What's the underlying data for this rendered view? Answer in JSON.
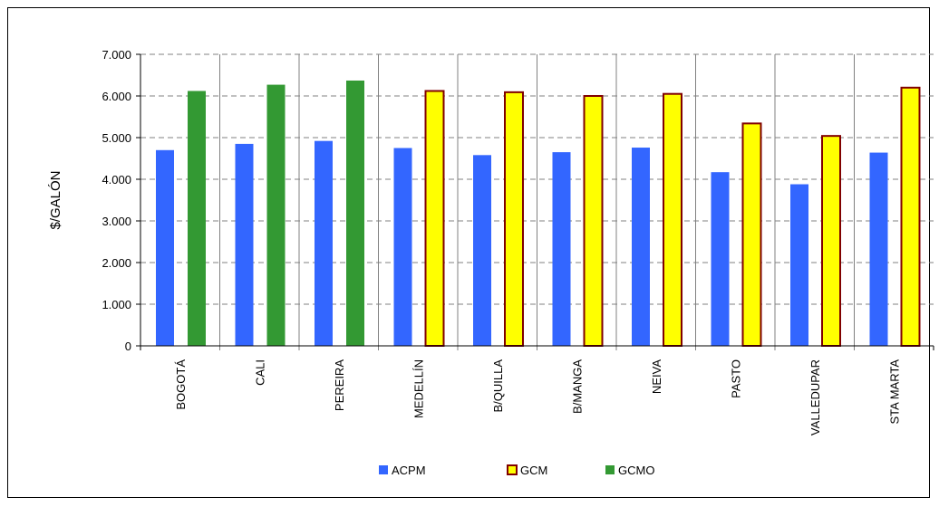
{
  "chart_data": {
    "type": "bar",
    "title": "",
    "xlabel": "",
    "ylabel": "$/GALÓN",
    "ylim": [
      0,
      7000
    ],
    "yticks": [
      0,
      1000,
      2000,
      3000,
      4000,
      5000,
      6000,
      7000
    ],
    "ytick_labels": [
      "0",
      "1.000",
      "2.000",
      "3.000",
      "4.000",
      "5.000",
      "6.000",
      "7.000"
    ],
    "grid": true,
    "legend_position": "bottom",
    "categories": [
      "BOGOTÁ",
      "CALI",
      "PEREIRA",
      "MEDELLÍN",
      "B/QUILLA",
      "B/MANGA",
      "NEIVA",
      "PASTO",
      "VALLEDUPAR",
      "STA MARTA"
    ],
    "series": [
      {
        "name": "ACPM",
        "color": "#3366FF",
        "stroke": "none",
        "values": [
          4700,
          4850,
          4920,
          4750,
          4580,
          4650,
          4760,
          4170,
          3880,
          4640
        ]
      },
      {
        "name": "GCM",
        "color": "#FFFF00",
        "stroke": "#800000",
        "values": [
          null,
          null,
          null,
          6120,
          6090,
          6000,
          6050,
          5340,
          5040,
          6200
        ]
      },
      {
        "name": "GCMO",
        "color": "#339933",
        "stroke": "none",
        "values": [
          6120,
          6270,
          6370,
          null,
          null,
          null,
          null,
          null,
          null,
          null
        ]
      }
    ]
  }
}
